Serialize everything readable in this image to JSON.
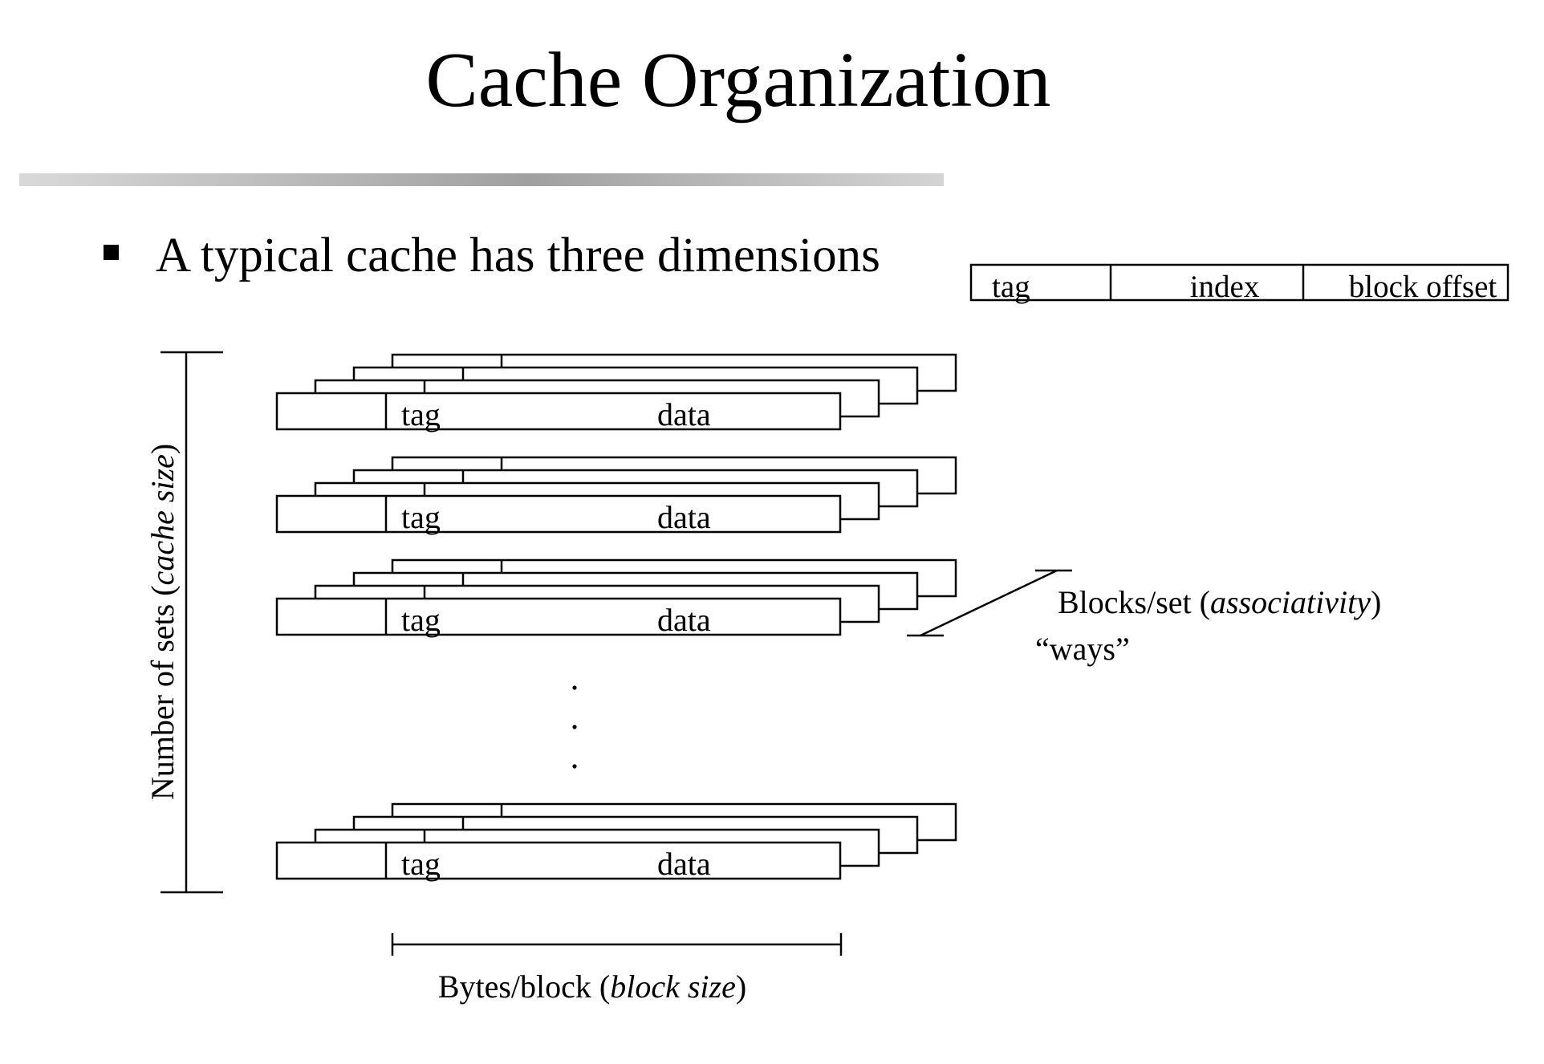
{
  "slide": {
    "title": "Cache Organization",
    "bullet": "A typical cache has three dimensions"
  },
  "address_fields": [
    "tag",
    "index",
    "block offset"
  ],
  "cache_sets": [
    {
      "tag_label": "tag",
      "data_label": "data"
    },
    {
      "tag_label": "tag",
      "data_label": "data"
    },
    {
      "tag_label": "tag",
      "data_label": "data"
    },
    {
      "tag_label": "tag",
      "data_label": "data"
    }
  ],
  "ellipsis": "· · ·",
  "dimensions": {
    "sets": {
      "label": "Number of sets (",
      "emphasis": "cache size",
      "suffix": ")"
    },
    "ways": {
      "label": "Blocks/set (",
      "emphasis": "associativity",
      "suffix": ")",
      "alias": "“ways”"
    },
    "block": {
      "label": "Bytes/block (",
      "emphasis": "block size",
      "suffix": ")"
    }
  }
}
